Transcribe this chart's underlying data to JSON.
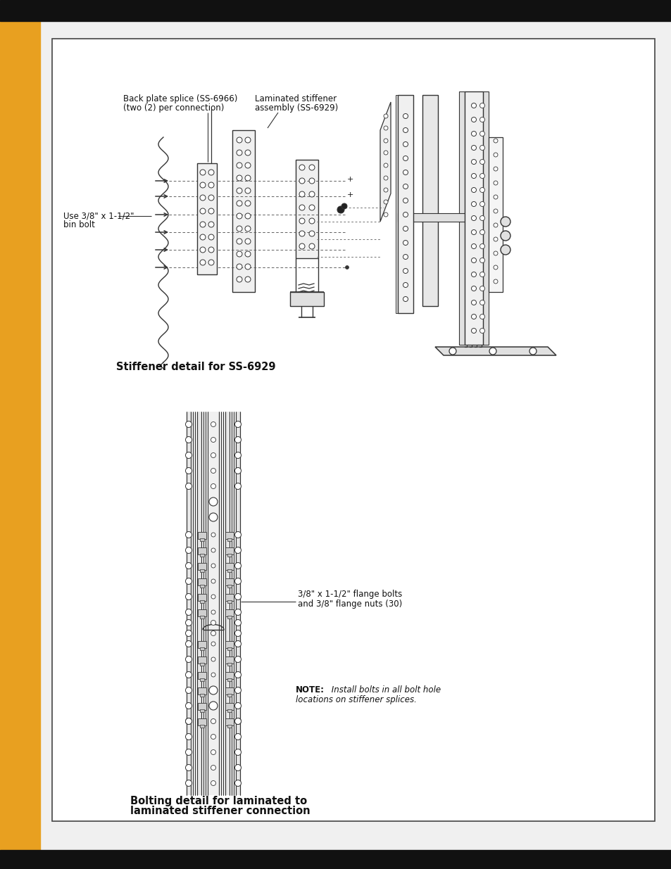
{
  "page_bg": "#f0f0f0",
  "sidebar_color": "#E8A020",
  "top_bar_color": "#111111",
  "bottom_bar_color": "#111111",
  "content_bg": "#ffffff",
  "border_color": "#444444",
  "lc": "#333333",
  "tc": "#111111",
  "title1": "Stiffener detail for SS-6929",
  "title2_line1": "Bolting detail for laminated to",
  "title2_line2": "laminated stiffener connection",
  "label_bp_1": "Back plate splice (SS-6966)",
  "label_bp_2": "(two (2) per connection)",
  "label_ls_1": "Laminated stiffener",
  "label_ls_2": "assembly (SS-6929)",
  "label_bb_1": "Use 3/8\" x 1-1/2\"",
  "label_bb_2": "bin bolt",
  "label_fb_1": "3/8\" x 1-1/2\" flange bolts",
  "label_fb_2": "and 3/8\" flange nuts (30)",
  "note_bold": "NOTE:",
  "note_italic": " Install bolts in all bolt hole\nlocations on stiffener splices."
}
